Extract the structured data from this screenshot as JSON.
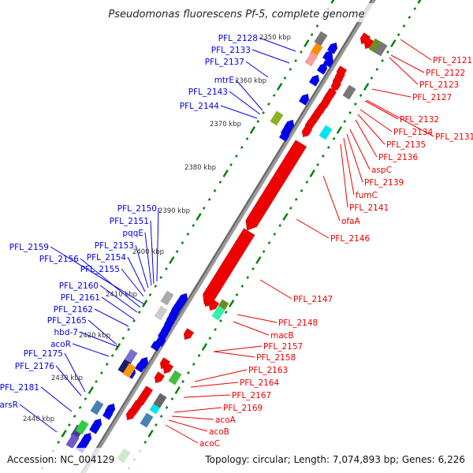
{
  "title": "Pseudomonas fluorescens Pf-5, complete genome",
  "footer": {
    "accession": "Accession: NC_004129",
    "summary": "Topology: circular; Length: 7,074,893 bp; Genes: 6,226"
  },
  "ticks": [
    "2350 kbp",
    "2360 kbp",
    "2370 kbp",
    "2380 kbp",
    "2390 kbp",
    "2400 kbp",
    "2410 kbp",
    "2420 kbp",
    "2430 kbp",
    "2440 kbp"
  ],
  "reverse_strand_labels": [
    "PFL_2128",
    "PFL_2133",
    "PFL_2137",
    "mtrE",
    "PFL_2143",
    "PFL_2144",
    "PFL_2150",
    "PFL_2151",
    "pqqE",
    "PFL_2153",
    "PFL_2154",
    "PFL_2155",
    "PFL_2159",
    "PFL_2156",
    "PFL_2160",
    "PFL_2161",
    "PFL_2162",
    "PFL_2165",
    "hbd-7",
    "acoR",
    "PFL_2175",
    "PFL_2176",
    "PFL_2181",
    "arsR"
  ],
  "forward_strand_labels": [
    "PFL_2121",
    "PFL_2122",
    "PFL_2123",
    "PFL_2127",
    "PFL_2132",
    "PFL_2134",
    "PFL_2131",
    "PFL_2135",
    "PFL_2136",
    "aspC",
    "PFL_2139",
    "fumC",
    "PFL_2141",
    "ofaA",
    "PFL_2146",
    "PFL_2147",
    "PFL_2148",
    "macB",
    "PFL_2157",
    "PFL_2158",
    "PFL_2163",
    "PFL_2164",
    "PFL_2167",
    "PFL_2169",
    "acoA",
    "acoB",
    "acoC"
  ],
  "colors": {
    "reverse": "#0000ff",
    "forward": "#ff0000",
    "backbone": "#888888",
    "ticks": "#008000"
  }
}
